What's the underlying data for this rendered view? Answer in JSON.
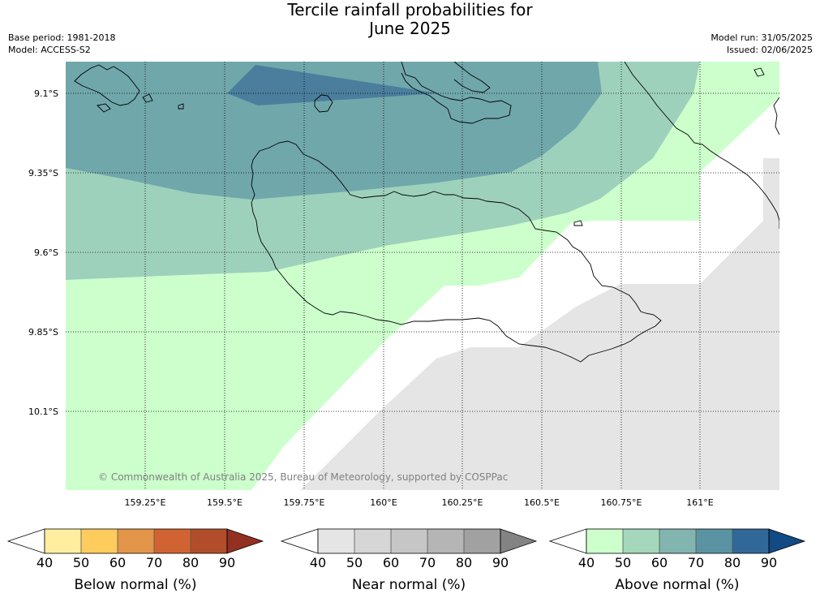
{
  "title": {
    "line1": "Tercile rainfall probabilities for",
    "line2": "June 2025"
  },
  "meta": {
    "base_period": "Base period: 1981-2018",
    "model": "Model: ACCESS-S2",
    "model_run": "Model run: 31/05/2025",
    "issued": "Issued: 02/06/2025"
  },
  "map": {
    "lat_labels": [
      "9.1°S",
      "9.35°S",
      "9.6°S",
      "9.85°S",
      "10.1°S"
    ],
    "lon_labels": [
      "159.25°E",
      "159.5°E",
      "159.75°E",
      "160°E",
      "160.25°E",
      "160.5°E",
      "160.75°E",
      "161°E"
    ],
    "copyright": "© Commonwealth of Australia 2025, Bureau of Meteorology, supported by COSPPac",
    "colors": {
      "above_40_50": "#ccffcc",
      "above_50_60": "#9ed1bc",
      "above_60_70": "#70a7ab",
      "above_70_80": "#4a7e9c",
      "near_50_60": "#e5e5e5",
      "white": "#ffffff"
    }
  },
  "colorbars": [
    {
      "title": "Below normal (%)",
      "ticks": [
        "40",
        "50",
        "60",
        "70",
        "80",
        "90"
      ],
      "colors": [
        "#ffffff",
        "#ffeda0",
        "#fecc5c",
        "#e3954a",
        "#d06331",
        "#b24d2b",
        "#933021"
      ]
    },
    {
      "title": "Near normal (%)",
      "ticks": [
        "40",
        "50",
        "60",
        "70",
        "80",
        "90"
      ],
      "colors": [
        "#ffffff",
        "#e5e5e5",
        "#d6d6d6",
        "#c6c6c6",
        "#b5b5b5",
        "#a1a1a1",
        "#838383"
      ]
    },
    {
      "title": "Above normal (%)",
      "ticks": [
        "40",
        "50",
        "60",
        "70",
        "80",
        "90"
      ],
      "colors": [
        "#ffffff",
        "#ccffcc",
        "#a4d7bb",
        "#82b5af",
        "#5b93a3",
        "#326898",
        "#124a84"
      ]
    }
  ]
}
